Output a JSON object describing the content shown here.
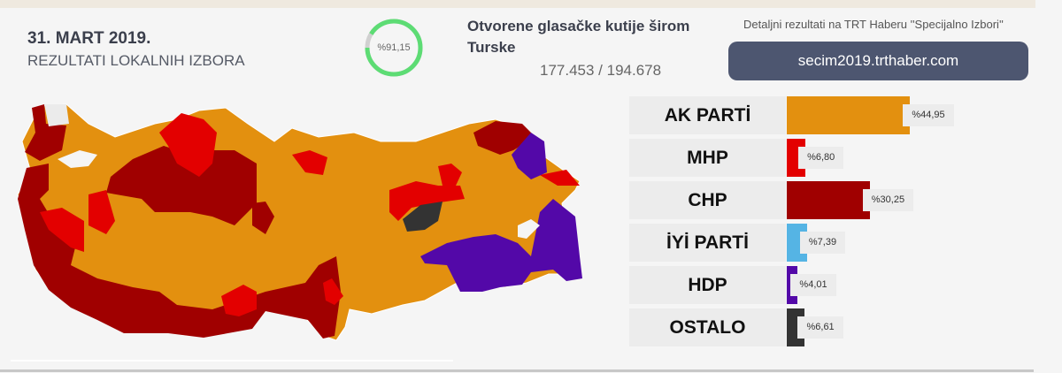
{
  "header": {
    "date": "31. MART 2019.",
    "subtitle": "REZULTATI LOKALNIH IZBORA"
  },
  "progress": {
    "percent_label": "%91,15",
    "value": 91.15,
    "color": "#5ddc74"
  },
  "ballot_boxes": {
    "title": "Otvorene glasačke kutije širom Turske",
    "count": "177.453 / 194.678"
  },
  "details": {
    "text": "Detaljni rezultati na TRT Haberu ''Specijalno Izbori''",
    "link": "secim2019.trthaber.com"
  },
  "parties": [
    {
      "name": "AK PARTİ",
      "percent_label": "%44,95",
      "value": 44.95,
      "color": "#e3900f"
    },
    {
      "name": "MHP",
      "percent_label": "%6,80",
      "value": 6.8,
      "color": "#e30000"
    },
    {
      "name": "CHP",
      "percent_label": "%30,25",
      "value": 30.25,
      "color": "#a00000"
    },
    {
      "name": "İYİ PARTİ",
      "percent_label": "%7,39",
      "value": 7.39,
      "color": "#55b4e4"
    },
    {
      "name": "HDP",
      "percent_label": "%4,01",
      "value": 4.01,
      "color": "#5308a8"
    },
    {
      "name": "OSTALO",
      "percent_label": "%6,61",
      "value": 6.61,
      "color": "#333333"
    }
  ]
}
